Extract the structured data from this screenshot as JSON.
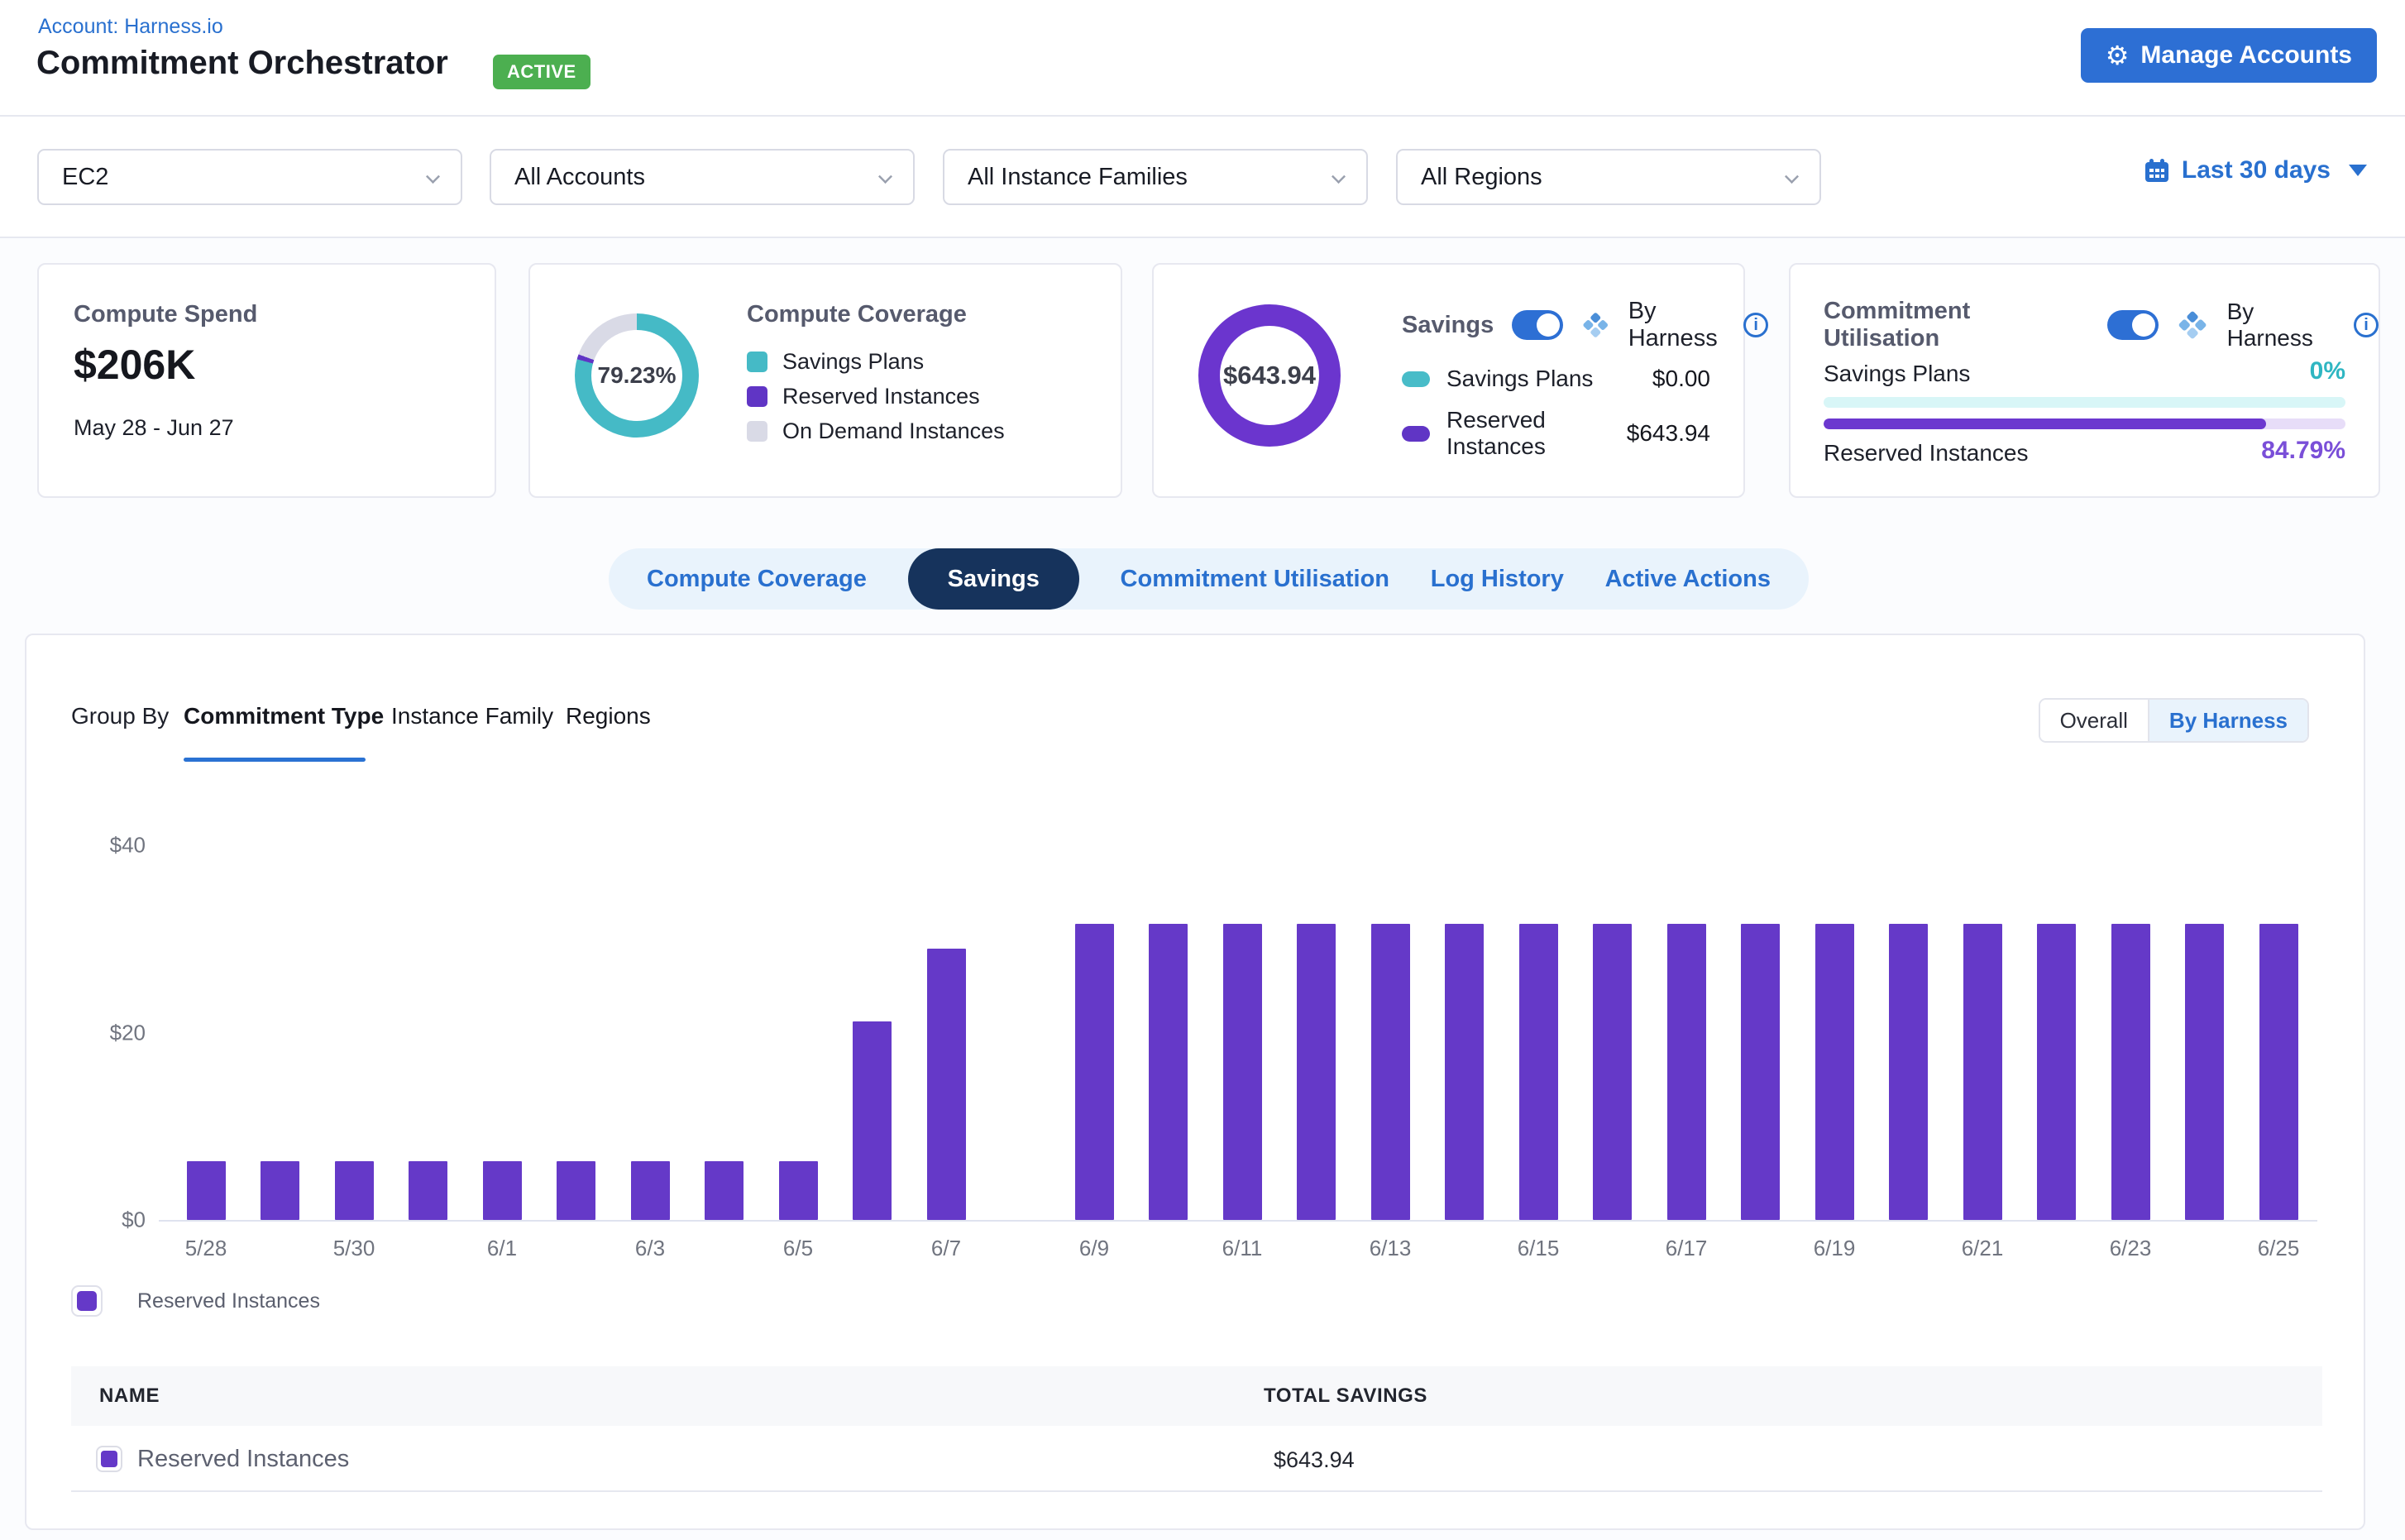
{
  "header": {
    "account_link": "Account: Harness.io",
    "title": "Commitment Orchestrator",
    "status_badge": "ACTIVE",
    "manage_accounts": "Manage Accounts"
  },
  "filters": {
    "items": [
      "EC2",
      "All Accounts",
      "All Instance Families",
      "All Regions"
    ],
    "date_range": "Last 30 days"
  },
  "cards": {
    "compute_spend": {
      "title": "Compute Spend",
      "value": "$206K",
      "period": "May 28 - Jun 27"
    },
    "compute_coverage": {
      "title": "Compute Coverage",
      "center_value": "79.23%",
      "segments": [
        {
          "label": "Savings Plans",
          "pct": 79.23,
          "color": "#45bac6"
        },
        {
          "label": "Reserved Instances",
          "pct": 1.3,
          "color": "#6035c5"
        },
        {
          "label": "On Demand Instances",
          "pct": 19.47,
          "color": "#d9dae6"
        }
      ]
    },
    "savings": {
      "title": "Savings",
      "toggle_label": "By Harness",
      "center_value": "$643.94",
      "ring_color": "#6b35ce",
      "rows": [
        {
          "label": "Savings Plans",
          "value": "$0.00",
          "color": "#48bcc8"
        },
        {
          "label": "Reserved Instances",
          "value": "$643.94",
          "color": "#6035c5"
        }
      ]
    },
    "commitment_utilisation": {
      "title": "Commitment Utilisation",
      "toggle_label": "By Harness",
      "rows": [
        {
          "label": "Savings Plans",
          "value": "0%",
          "pct": 0,
          "bar_color": "#2fb6c2",
          "track_color": "#d8f6f7",
          "value_color": "#2fb6c2"
        },
        {
          "label": "Reserved Instances",
          "value": "84.79%",
          "pct": 84.79,
          "bar_color": "#6c38cf",
          "track_color": "#e7ddf8",
          "value_color": "#7a4fd8"
        }
      ]
    }
  },
  "tabs": [
    {
      "label": "Compute Coverage",
      "active": false
    },
    {
      "label": "Savings",
      "active": true
    },
    {
      "label": "Commitment Utilisation",
      "active": false
    },
    {
      "label": "Log History",
      "active": false
    },
    {
      "label": "Active Actions",
      "active": false
    }
  ],
  "panel": {
    "group_by_label": "Group By",
    "group_by_options": [
      "Commitment Type",
      "Instance Family",
      "Regions"
    ],
    "active_group_by": "Commitment Type",
    "view_options": [
      "Overall",
      "By Harness"
    ],
    "active_view": "By Harness"
  },
  "chart_data": {
    "type": "bar",
    "series_name": "Reserved Instances",
    "bar_color": "#6539c8",
    "categories": [
      "5/28",
      "5/29",
      "5/30",
      "5/31",
      "6/1",
      "6/2",
      "6/3",
      "6/4",
      "6/5",
      "6/6",
      "6/7",
      "6/8",
      "6/9",
      "6/10",
      "6/11",
      "6/12",
      "6/13",
      "6/14",
      "6/15",
      "6/16",
      "6/17",
      "6/18",
      "6/19",
      "6/20",
      "6/21",
      "6/22",
      "6/23",
      "6/24",
      "6/25"
    ],
    "values": [
      6.3,
      6.3,
      6.3,
      6.3,
      6.3,
      6.3,
      6.3,
      6.3,
      6.3,
      21.2,
      29,
      0,
      31.6,
      31.6,
      31.6,
      31.6,
      31.6,
      31.6,
      31.6,
      31.6,
      31.6,
      31.6,
      31.6,
      31.6,
      31.6,
      31.6,
      31.6,
      31.6,
      31.6
    ],
    "x_tick_indices": [
      0,
      2,
      4,
      6,
      8,
      10,
      12,
      14,
      16,
      18,
      20,
      22,
      24,
      26,
      28
    ],
    "y_ticks": [
      {
        "label": "$0",
        "value": 0
      },
      {
        "label": "$20",
        "value": 20
      },
      {
        "label": "$40",
        "value": 40
      }
    ],
    "ylim": [
      0,
      40
    ],
    "grid": false,
    "legend_position": "bottom-left"
  },
  "chart_legend": {
    "label": "Reserved Instances",
    "color": "#6539c8"
  },
  "table": {
    "columns": [
      "NAME",
      "TOTAL SAVINGS"
    ],
    "rows": [
      {
        "name": "Reserved Instances",
        "swatch_color": "#6539c8",
        "total_savings": "$643.94"
      }
    ]
  }
}
